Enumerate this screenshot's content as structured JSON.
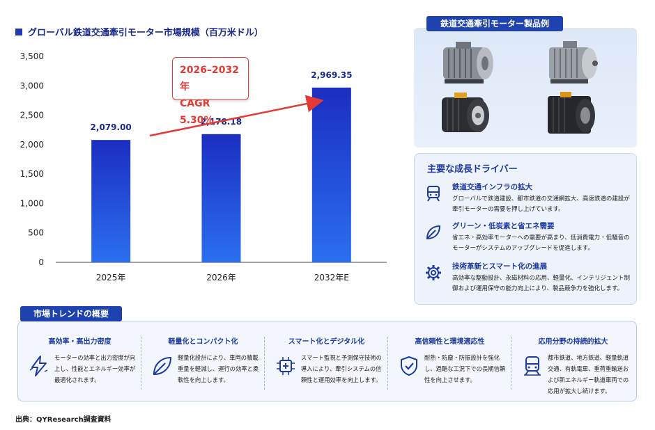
{
  "chart_data": {
    "type": "bar",
    "title": "グローバル鉄道交通牽引モーター市場規模（百万米ドル）",
    "categories": [
      "2025年",
      "2026年",
      "2032年E"
    ],
    "values": [
      2079.0,
      2178.18,
      2969.35
    ],
    "value_labels": [
      "2,079.00",
      "2,178.18",
      "2,969.35"
    ],
    "ylim": [
      0,
      3500
    ],
    "yticks": [
      "0",
      "500",
      "1,000",
      "1,500",
      "2,000",
      "2,500",
      "3,000",
      "3,500"
    ],
    "xlabel": "",
    "ylabel": "",
    "bar_color": "#1a2fd0",
    "annotation": {
      "line1": "2026–2032年",
      "line2": "CAGR 5.30%",
      "color": "#e53935"
    }
  },
  "products": {
    "title": "鉄道交通牽引モーター製品例"
  },
  "drivers": {
    "title": "主要な成長ドライバー",
    "items": [
      {
        "icon": "train-icon",
        "heading": "鉄道交通インフラの拡大",
        "desc": "グローバルで鉄道建設、都市鉄道の交通網拡大、高速鉄道の建設が牽引モーターの需要を押し上げています。"
      },
      {
        "icon": "leaf-icon",
        "heading": "グリーン・低炭素と省エネ需要",
        "desc": "省エネ・高効率モーターへの需要が高まり、低消費電力・低騒音のモーターがシステムのアップグレードを促進します。"
      },
      {
        "icon": "gear-icon",
        "heading": "技術革新とスマート化の進展",
        "desc": "高効率な駆動設計、永磁材料の応用、軽量化、インテリジェント制御および運用保守の能力向上により、製品競争力を強化します。"
      }
    ]
  },
  "trends": {
    "title": "市場トレンドの概要",
    "items": [
      {
        "icon": "lightning-icon",
        "heading": "高効率・高出力密度",
        "desc": "モーターの効率と出力密度が向上し、性能とエネルギー効率が最適化されます。"
      },
      {
        "icon": "leaf-icon",
        "heading": "軽量化とコンパクト化",
        "desc": "軽量化設計により、車両の積載重量を軽減し、運行の効率と柔軟性を向上します。"
      },
      {
        "icon": "chip-icon",
        "heading": "スマート化とデジタル化",
        "desc": "スマート監視と予測保守技術の導入により、牽引システムの信頼性と運用効率を向上します。"
      },
      {
        "icon": "shield-check-icon",
        "heading": "高信頼性と環境適応性",
        "desc": "耐熱・防塵・防振設計を強化し、過酷な工況下での長期信頼性を向上させます。"
      },
      {
        "icon": "train-icon",
        "heading": "応用分野の持続的拡大",
        "desc": "都市鉄道、地方鉄道、軽量軌道交通、有軌電車、重荷重輸送および新エネルギー軌道車両での応用が拡大し続けます。"
      }
    ]
  },
  "source": "出典：QYResearch調査資料"
}
